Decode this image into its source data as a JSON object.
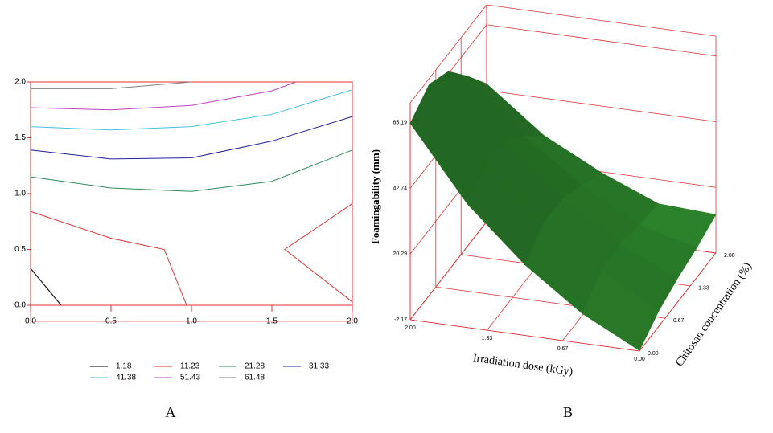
{
  "chart_data": [
    {
      "type": "contour",
      "label": "A",
      "xlim": [
        0,
        2
      ],
      "ylim": [
        0,
        2
      ],
      "xticks": [
        {
          "value": 0,
          "label": "0.0"
        },
        {
          "value": 0.5,
          "label": "0.5"
        },
        {
          "value": 1,
          "label": "1.0"
        },
        {
          "value": 1.5,
          "label": "1.5"
        },
        {
          "value": 2,
          "label": "2.0"
        }
      ],
      "yticks": [
        {
          "value": 0,
          "label": "0.0"
        },
        {
          "value": 0.5,
          "label": "0.5"
        },
        {
          "value": 1,
          "label": "1.0"
        },
        {
          "value": 1.5,
          "label": "1.5"
        },
        {
          "value": 2,
          "label": "2.0"
        }
      ],
      "frame_color": "#e03030",
      "series": [
        {
          "name": "1.18",
          "color": "#000000",
          "x": [
            0,
            0.19
          ],
          "y": [
            0.33,
            0
          ]
        },
        {
          "name": "11.23",
          "color": "#e03030",
          "x": [
            0,
            0.5,
            0.83,
            0.97,
            null,
            2,
            1.58,
            2
          ],
          "y": [
            0.84,
            0.6,
            0.5,
            0,
            null,
            0.91,
            0.5,
            0.03
          ]
        },
        {
          "name": "21.28",
          "color": "#2e8b57",
          "x": [
            0,
            0.5,
            1,
            1.5,
            2
          ],
          "y": [
            1.15,
            1.05,
            1.02,
            1.11,
            1.39
          ]
        },
        {
          "name": "31.33",
          "color": "#20209a",
          "x": [
            0,
            0.5,
            1,
            1.5,
            2
          ],
          "y": [
            1.39,
            1.31,
            1.32,
            1.47,
            1.69
          ]
        },
        {
          "name": "41.38",
          "color": "#40c0e0",
          "x": [
            0,
            0.5,
            1,
            1.5,
            2
          ],
          "y": [
            1.6,
            1.57,
            1.6,
            1.71,
            1.93
          ]
        },
        {
          "name": "51.43",
          "color": "#c040c0",
          "x": [
            0,
            0.5,
            1,
            1.5,
            1.65
          ],
          "y": [
            1.77,
            1.75,
            1.79,
            1.92,
            2
          ]
        },
        {
          "name": "61.48",
          "color": "#808080",
          "x": [
            0,
            0.5,
            1
          ],
          "y": [
            1.94,
            1.94,
            2
          ]
        }
      ]
    },
    {
      "type": "surface",
      "label": "B",
      "zlabel": "Foamingability (mm)",
      "xlabel": "Irradiation dose (kGy)",
      "ylabel": "Chitosan concentration (%)",
      "color": "#2e8b2e",
      "frame_color": "#e03030",
      "x": [
        0,
        0.5,
        1,
        1.5,
        2
      ],
      "y": [
        0,
        0.5,
        1,
        1.5,
        2
      ],
      "z": [
        [
          -2,
          3,
          6,
          8,
          11
        ],
        [
          8,
          14,
          15,
          13,
          12
        ],
        [
          22,
          28,
          28,
          24,
          20
        ],
        [
          40,
          46,
          45,
          38,
          30
        ],
        [
          65,
          70,
          66,
          56,
          45
        ]
      ],
      "xlim": [
        0,
        2
      ],
      "ylim": [
        0,
        2
      ],
      "zlim": [
        -2.17,
        72
      ],
      "xticks": [
        {
          "value": 2,
          "label": "2.00"
        },
        {
          "value": 1.33,
          "label": "1.33"
        },
        {
          "value": 0.67,
          "label": "0.67"
        },
        {
          "value": 0,
          "label": "0.00"
        }
      ],
      "yticks": [
        {
          "value": 0,
          "label": "0.00"
        },
        {
          "value": 0.67,
          "label": "0.67"
        },
        {
          "value": 1.33,
          "label": "1.33"
        },
        {
          "value": 2,
          "label": "2.00"
        }
      ],
      "zticks": [
        -2.17,
        20.29,
        42.74,
        65.19
      ]
    }
  ]
}
